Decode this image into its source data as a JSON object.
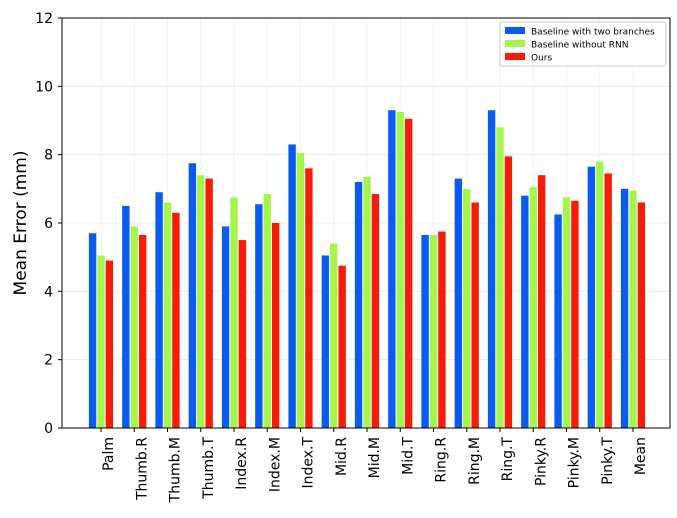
{
  "chart_data": {
    "type": "bar",
    "title": "",
    "xlabel": "",
    "ylabel": "Mean Error (mm)",
    "ylim": [
      0,
      12
    ],
    "yticks": [
      0,
      2,
      4,
      6,
      8,
      10,
      12
    ],
    "grid": true,
    "legend_position": "top-right",
    "categories": [
      "Palm",
      "Thumb.R",
      "Thumb.M",
      "Thumb.T",
      "Index.R",
      "Index.M",
      "Index.T",
      "Mid.R",
      "Mid.M",
      "Mid.T",
      "Ring.R",
      "Ring.M",
      "Ring.T",
      "Pinky.R",
      "Pinky.M",
      "Pinky.T",
      "Mean"
    ],
    "series": [
      {
        "name": "Baseline with two branches",
        "color": "#0a5cf0",
        "values": [
          5.7,
          6.5,
          6.9,
          7.75,
          5.9,
          6.55,
          8.3,
          5.05,
          7.2,
          9.3,
          5.65,
          7.3,
          9.3,
          6.8,
          6.25,
          7.65,
          7.0
        ]
      },
      {
        "name": "Baseline without RNN",
        "color": "#a6f54d",
        "values": [
          5.05,
          5.9,
          6.6,
          7.4,
          6.75,
          6.85,
          8.05,
          5.4,
          7.35,
          9.25,
          5.65,
          7.0,
          8.8,
          7.05,
          6.75,
          7.8,
          6.95
        ]
      },
      {
        "name": "Ours",
        "color": "#f51c0a",
        "values": [
          4.9,
          5.65,
          6.3,
          7.3,
          5.5,
          6.0,
          7.6,
          4.75,
          6.85,
          9.05,
          5.75,
          6.6,
          7.95,
          7.4,
          6.65,
          7.45,
          6.6
        ]
      }
    ]
  }
}
